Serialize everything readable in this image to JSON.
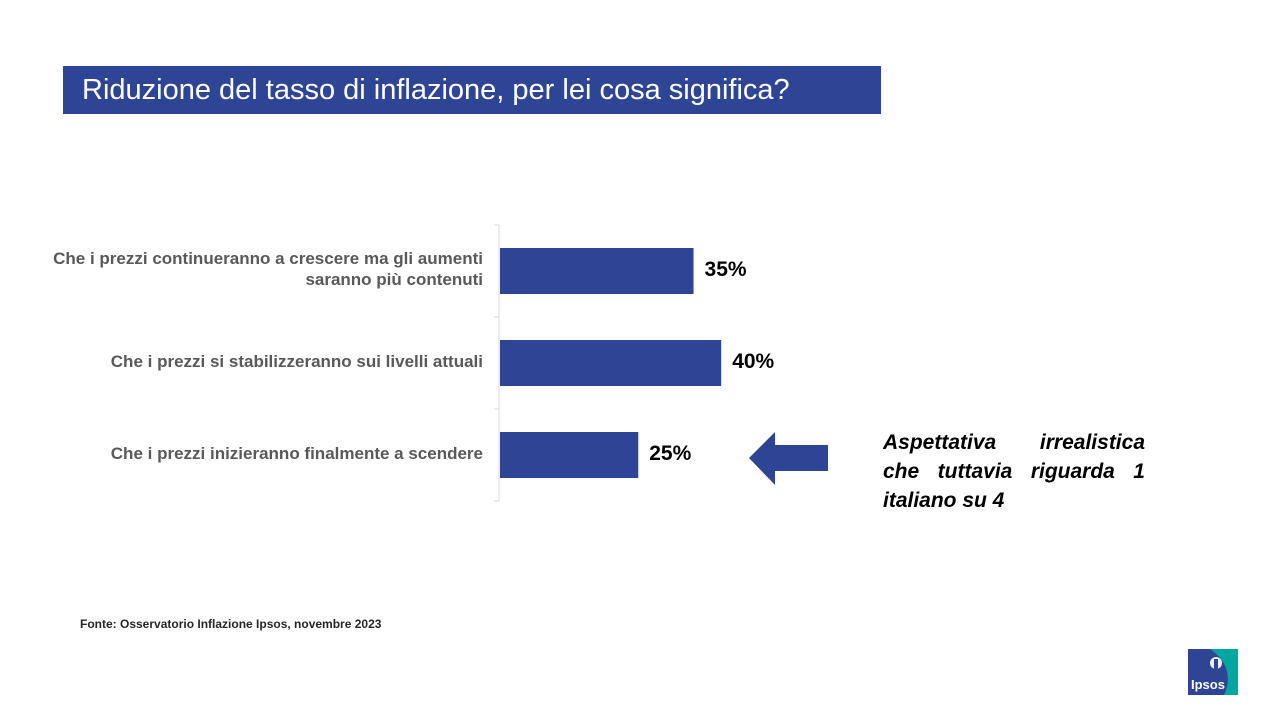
{
  "title": "Riduzione del tasso di inflazione, per lei cosa significa?",
  "chart_data": {
    "type": "bar",
    "orientation": "horizontal",
    "categories": [
      "Che i prezzi continueranno a crescere ma gli aumenti saranno più contenuti",
      "Che i prezzi si stabilizzeranno sui livelli attuali",
      "Che i prezzi inizieranno finalmente a scendere"
    ],
    "values": [
      35,
      40,
      25
    ],
    "value_labels": [
      "35%",
      "40%",
      "25%"
    ],
    "unit": "%",
    "xlim": [
      0,
      100
    ],
    "bar_color": "#2E4596",
    "grid": false,
    "legend": "none"
  },
  "annotation": {
    "text": "Aspettativa irrealistica che tuttavia riguarda 1 italiano su 4",
    "points_to": "Che i prezzi inizieranno finalmente a scendere",
    "arrow_color": "#2E4596"
  },
  "source": "Fonte: Osservatorio Inflazione Ipsos, novembre 2023",
  "logo": {
    "text": "Ipsos",
    "colors": [
      "#2E4596",
      "#00A7A0"
    ]
  }
}
